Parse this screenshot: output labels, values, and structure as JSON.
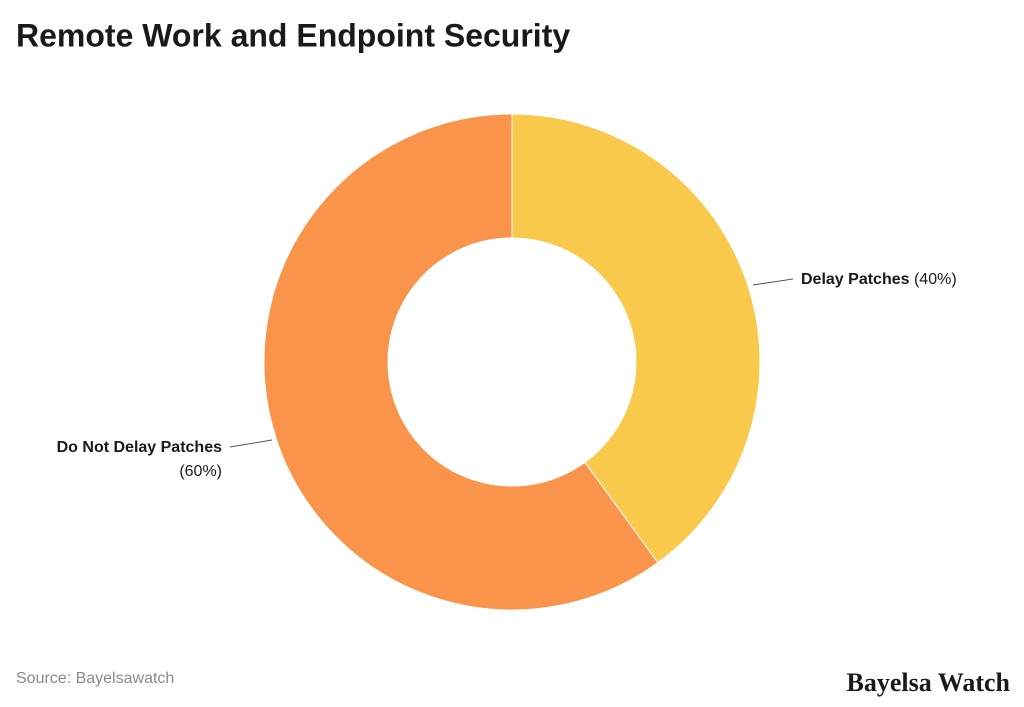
{
  "chart_data": {
    "type": "pie",
    "title": "Remote Work and Endpoint Security",
    "categories": [
      "Delay Patches",
      "Do Not Delay Patches"
    ],
    "values": [
      40,
      60
    ],
    "value_labels": [
      "(40%)",
      "(60%)"
    ],
    "colors": [
      "#f8c94a",
      "#f9944a"
    ],
    "donut": true
  },
  "source": "Source: Bayelsawatch",
  "brand": "Bayelsa Watch"
}
